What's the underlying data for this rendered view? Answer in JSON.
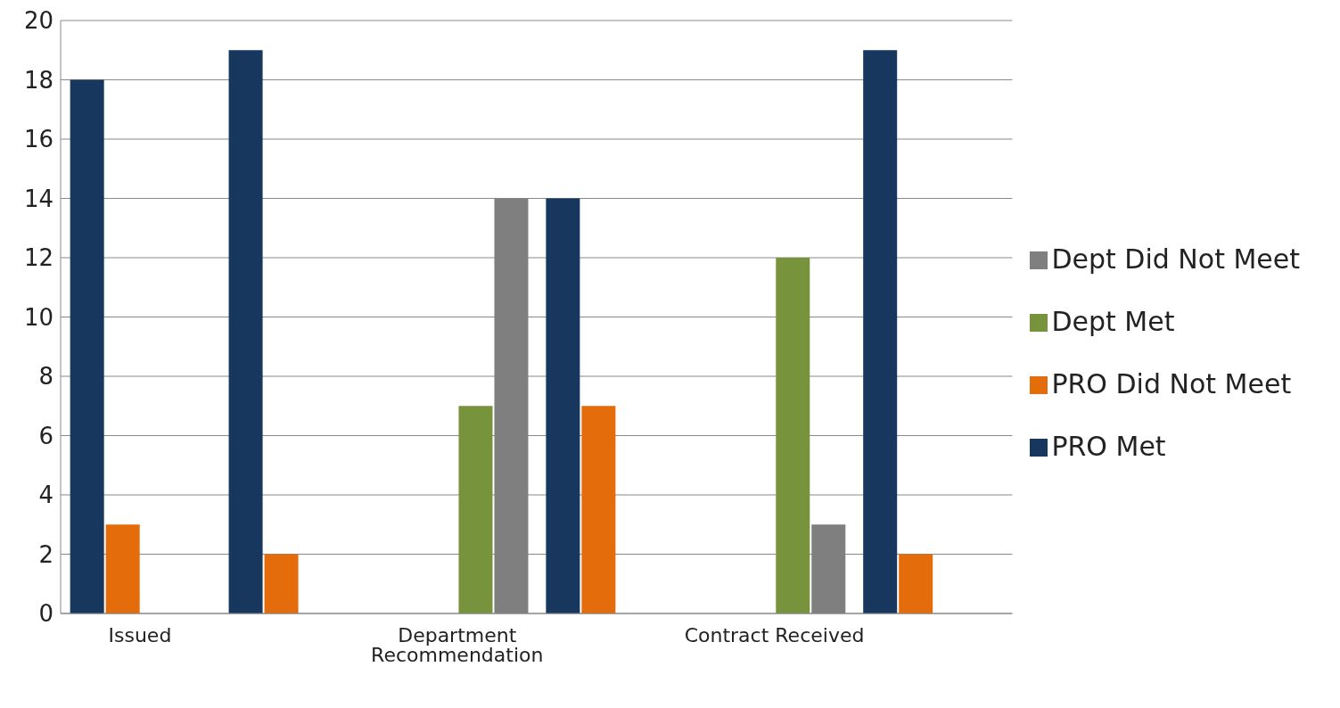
{
  "chart_data": {
    "type": "bar",
    "categories": [
      "Issued",
      null,
      "Department Recommendation",
      null,
      "Contract Received",
      null
    ],
    "series": [
      {
        "name": "PRO Met",
        "color": "#17375e",
        "values": [
          18,
          19,
          null,
          14,
          null,
          19
        ]
      },
      {
        "name": "PRO Did Not Meet",
        "color": "#e46c0a",
        "values": [
          3,
          2,
          null,
          7,
          null,
          2
        ]
      },
      {
        "name": "Dept Met",
        "color": "#77933c",
        "values": [
          null,
          null,
          7,
          null,
          12,
          null
        ]
      },
      {
        "name": "Dept Did Not Meet",
        "color": "#7f7f7f",
        "values": [
          null,
          null,
          14,
          null,
          3,
          null
        ]
      }
    ],
    "ylim": [
      0,
      20
    ],
    "yticks": [
      0,
      2,
      4,
      6,
      8,
      10,
      12,
      14,
      16,
      18,
      20
    ],
    "grid": "y",
    "legend": "right"
  }
}
